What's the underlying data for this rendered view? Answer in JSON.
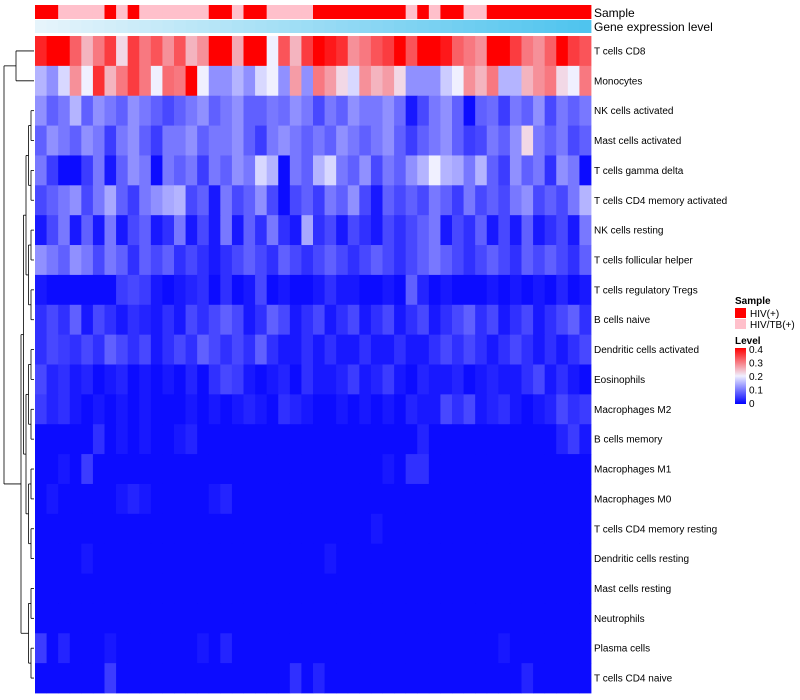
{
  "chart_data": {
    "type": "heatmap",
    "annotation_tracks": [
      {
        "key": "sample",
        "label": "Sample"
      },
      {
        "key": "expression",
        "label": "Gene expression level"
      }
    ],
    "rows": [
      "T cells CD8",
      "Monocytes",
      "NK cells activated",
      "Mast cells activated",
      "T cells gamma delta",
      "T cells CD4 memory activated",
      "NK cells resting",
      "T cells follicular helper",
      "T cells regulatory  Tregs",
      "B cells naive",
      "Dendritic cells activated",
      "Eosinophils",
      "Macrophages M2",
      "B cells memory",
      "Macrophages M1",
      "Macrophages M0",
      "T cells CD4 memory resting",
      "Dendritic cells resting",
      "Mast cells resting",
      "Neutrophils",
      "Plasma cells",
      "T cells CD4 naive"
    ],
    "sample_groups": [
      "HIV(+)",
      "HIV/TB(+)"
    ],
    "column_samples": [
      0,
      0,
      1,
      1,
      1,
      1,
      0,
      1,
      0,
      1,
      1,
      1,
      1,
      1,
      1,
      0,
      0,
      1,
      0,
      0,
      1,
      1,
      1,
      1,
      0,
      0,
      0,
      0,
      0,
      0,
      0,
      0,
      1,
      0,
      1,
      0,
      0,
      1,
      1,
      0,
      0,
      0,
      0,
      0,
      0,
      0,
      0,
      0
    ],
    "sample_colors": {
      "HIV(+)": "#ff0000",
      "HIV/TB(+)": "#ffc0cb"
    },
    "expression_track_colors": [
      "#e6f4fb",
      "#4fc4ee"
    ],
    "values": [
      [
        0.37,
        0.4,
        0.4,
        0.32,
        0.25,
        0.3,
        0.35,
        0.22,
        0.35,
        0.3,
        0.33,
        0.28,
        0.33,
        0.25,
        0.28,
        0.45,
        0.45,
        0.26,
        0.45,
        0.45,
        0.2,
        0.33,
        0.25,
        0.35,
        0.4,
        0.38,
        0.36,
        0.28,
        0.3,
        0.33,
        0.35,
        0.4,
        0.33,
        0.45,
        0.45,
        0.38,
        0.32,
        0.3,
        0.28,
        0.4,
        0.45,
        0.35,
        0.3,
        0.28,
        0.32,
        0.4,
        0.35,
        0.33
      ],
      [
        0.15,
        0.12,
        0.18,
        0.28,
        0.2,
        0.36,
        0.25,
        0.3,
        0.35,
        0.3,
        0.2,
        0.31,
        0.3,
        0.45,
        0.2,
        0.12,
        0.12,
        0.15,
        0.12,
        0.18,
        0.2,
        0.12,
        0.27,
        0.12,
        0.3,
        0.27,
        0.22,
        0.18,
        0.28,
        0.25,
        0.27,
        0.22,
        0.12,
        0.12,
        0.12,
        0.17,
        0.2,
        0.28,
        0.25,
        0.3,
        0.15,
        0.15,
        0.25,
        0.28,
        0.3,
        0.22,
        0.2,
        0.3
      ],
      [
        0.12,
        0.08,
        0.1,
        0.15,
        0.08,
        0.12,
        0.1,
        0.08,
        0.12,
        0.1,
        0.08,
        0.06,
        0.08,
        0.1,
        0.12,
        0.08,
        0.1,
        0.12,
        0.08,
        0.08,
        0.1,
        0.09,
        0.12,
        0.1,
        0.06,
        0.1,
        0.08,
        0.12,
        0.1,
        0.1,
        0.12,
        0.09,
        0.02,
        0.06,
        0.1,
        0.12,
        0.08,
        0.01,
        0.08,
        0.09,
        0.05,
        0.1,
        0.08,
        0.12,
        0.06,
        0.1,
        0.08,
        0.1
      ],
      [
        0.08,
        0.12,
        0.1,
        0.08,
        0.12,
        0.1,
        0.05,
        0.1,
        0.12,
        0.08,
        0.05,
        0.1,
        0.1,
        0.12,
        0.08,
        0.1,
        0.1,
        0.12,
        0.08,
        0.05,
        0.1,
        0.12,
        0.1,
        0.08,
        0.1,
        0.08,
        0.12,
        0.1,
        0.08,
        0.1,
        0.12,
        0.08,
        0.05,
        0.08,
        0.1,
        0.12,
        0.08,
        0.05,
        0.06,
        0.1,
        0.08,
        0.12,
        0.22,
        0.1,
        0.08,
        0.1,
        0.06,
        0.08
      ],
      [
        0.1,
        0.05,
        0.01,
        0.01,
        0.05,
        0.1,
        0.02,
        0.08,
        0.12,
        0.1,
        0.01,
        0.1,
        0.08,
        0.1,
        0.05,
        0.1,
        0.08,
        0.12,
        0.1,
        0.18,
        0.15,
        0.01,
        0.1,
        0.08,
        0.15,
        0.18,
        0.1,
        0.08,
        0.12,
        0.06,
        0.1,
        0.08,
        0.12,
        0.15,
        0.2,
        0.15,
        0.14,
        0.1,
        0.15,
        0.08,
        0.05,
        0.12,
        0.08,
        0.1,
        0.04,
        0.12,
        0.1,
        0.01
      ],
      [
        0.06,
        0.08,
        0.1,
        0.12,
        0.06,
        0.1,
        0.14,
        0.08,
        0.05,
        0.1,
        0.12,
        0.14,
        0.15,
        0.06,
        0.08,
        0.02,
        0.1,
        0.06,
        0.08,
        0.12,
        0.06,
        0.01,
        0.06,
        0.08,
        0.05,
        0.1,
        0.08,
        0.12,
        0.06,
        0.02,
        0.08,
        0.06,
        0.08,
        0.06,
        0.1,
        0.08,
        0.05,
        0.1,
        0.06,
        0.08,
        0.06,
        0.1,
        0.12,
        0.06,
        0.08,
        0.06,
        0.1,
        0.15
      ],
      [
        0.02,
        0.06,
        0.1,
        0.02,
        0.08,
        0.02,
        0.1,
        0.02,
        0.06,
        0.08,
        0.02,
        0.04,
        0.1,
        0.02,
        0.06,
        0.02,
        0.1,
        0.02,
        0.08,
        0.04,
        0.1,
        0.04,
        0.02,
        0.14,
        0.04,
        0.06,
        0.02,
        0.06,
        0.04,
        0.02,
        0.06,
        0.04,
        0.06,
        0.08,
        0.1,
        0.02,
        0.06,
        0.04,
        0.08,
        0.02,
        0.06,
        0.02,
        0.08,
        0.02,
        0.04,
        0.06,
        0.02,
        0.1
      ],
      [
        0.12,
        0.1,
        0.08,
        0.12,
        0.1,
        0.06,
        0.1,
        0.08,
        0.04,
        0.08,
        0.06,
        0.08,
        0.04,
        0.06,
        0.04,
        0.02,
        0.04,
        0.06,
        0.08,
        0.06,
        0.04,
        0.08,
        0.06,
        0.04,
        0.06,
        0.08,
        0.06,
        0.04,
        0.06,
        0.08,
        0.06,
        0.04,
        0.06,
        0.08,
        0.1,
        0.08,
        0.06,
        0.04,
        0.06,
        0.08,
        0.06,
        0.04,
        0.08,
        0.06,
        0.08,
        0.06,
        0.04,
        0.08
      ],
      [
        0.02,
        0.01,
        0.01,
        0.01,
        0.01,
        0.01,
        0.01,
        0.05,
        0.06,
        0.05,
        0.02,
        0.01,
        0.02,
        0.03,
        0.04,
        0.01,
        0.04,
        0.01,
        0.02,
        0.06,
        0.01,
        0.02,
        0.01,
        0.01,
        0.02,
        0.04,
        0.02,
        0.02,
        0.01,
        0.01,
        0.02,
        0.01,
        0.08,
        0.03,
        0.01,
        0.02,
        0.01,
        0.01,
        0.01,
        0.02,
        0.01,
        0.02,
        0.01,
        0.02,
        0.01,
        0.03,
        0.01,
        0.02
      ],
      [
        0.04,
        0.06,
        0.04,
        0.08,
        0.02,
        0.06,
        0.04,
        0.02,
        0.04,
        0.03,
        0.02,
        0.04,
        0.02,
        0.06,
        0.04,
        0.06,
        0.08,
        0.06,
        0.02,
        0.04,
        0.08,
        0.06,
        0.02,
        0.04,
        0.06,
        0.02,
        0.04,
        0.06,
        0.02,
        0.04,
        0.06,
        0.02,
        0.04,
        0.06,
        0.02,
        0.04,
        0.06,
        0.08,
        0.04,
        0.06,
        0.02,
        0.04,
        0.06,
        0.02,
        0.04,
        0.06,
        0.08,
        0.04
      ],
      [
        0.04,
        0.06,
        0.05,
        0.04,
        0.06,
        0.04,
        0.08,
        0.06,
        0.04,
        0.06,
        0.02,
        0.04,
        0.06,
        0.04,
        0.08,
        0.06,
        0.04,
        0.06,
        0.04,
        0.08,
        0.04,
        0.02,
        0.02,
        0.04,
        0.02,
        0.04,
        0.02,
        0.02,
        0.04,
        0.02,
        0.02,
        0.04,
        0.02,
        0.02,
        0.04,
        0.06,
        0.04,
        0.06,
        0.04,
        0.02,
        0.04,
        0.06,
        0.04,
        0.02,
        0.04,
        0.02,
        0.04,
        0.06
      ],
      [
        0.06,
        0.03,
        0.04,
        0.02,
        0.03,
        0.01,
        0.02,
        0.03,
        0.01,
        0.02,
        0.01,
        0.02,
        0.01,
        0.03,
        0.01,
        0.04,
        0.06,
        0.05,
        0.02,
        0.01,
        0.02,
        0.03,
        0.01,
        0.04,
        0.02,
        0.02,
        0.03,
        0.05,
        0.02,
        0.03,
        0.05,
        0.02,
        0.01,
        0.03,
        0.02,
        0.02,
        0.03,
        0.01,
        0.02,
        0.03,
        0.02,
        0.02,
        0.04,
        0.06,
        0.02,
        0.04,
        0.02,
        0.01
      ],
      [
        0.05,
        0.03,
        0.04,
        0.02,
        0.01,
        0.02,
        0.01,
        0.02,
        0.01,
        0.02,
        0.01,
        0.01,
        0.01,
        0.02,
        0.01,
        0.02,
        0.01,
        0.02,
        0.03,
        0.02,
        0.01,
        0.04,
        0.03,
        0.02,
        0.01,
        0.01,
        0.02,
        0.01,
        0.02,
        0.01,
        0.02,
        0.01,
        0.03,
        0.02,
        0.02,
        0.06,
        0.04,
        0.06,
        0.02,
        0.03,
        0.04,
        0.02,
        0.01,
        0.02,
        0.03,
        0.06,
        0.04,
        0.05
      ],
      [
        0.01,
        0.01,
        0.01,
        0.01,
        0.01,
        0.04,
        0.01,
        0.02,
        0.01,
        0.02,
        0.01,
        0.01,
        0.02,
        0.03,
        0.01,
        0.01,
        0.01,
        0.01,
        0.01,
        0.01,
        0.01,
        0.01,
        0.01,
        0.01,
        0.01,
        0.01,
        0.01,
        0.01,
        0.01,
        0.01,
        0.01,
        0.01,
        0.01,
        0.03,
        0.01,
        0.01,
        0.01,
        0.01,
        0.01,
        0.01,
        0.01,
        0.01,
        0.01,
        0.01,
        0.01,
        0.03,
        0.05,
        0.02
      ],
      [
        0.01,
        0.01,
        0.02,
        0.01,
        0.05,
        0.01,
        0.01,
        0.01,
        0.01,
        0.01,
        0.01,
        0.01,
        0.01,
        0.01,
        0.01,
        0.01,
        0.01,
        0.01,
        0.01,
        0.01,
        0.01,
        0.01,
        0.01,
        0.01,
        0.01,
        0.01,
        0.01,
        0.01,
        0.01,
        0.01,
        0.02,
        0.01,
        0.04,
        0.04,
        0.01,
        0.01,
        0.01,
        0.01,
        0.01,
        0.01,
        0.01,
        0.01,
        0.01,
        0.01,
        0.01,
        0.01,
        0.01,
        0.01
      ],
      [
        0.01,
        0.02,
        0.01,
        0.01,
        0.01,
        0.01,
        0.01,
        0.02,
        0.03,
        0.02,
        0.01,
        0.01,
        0.01,
        0.01,
        0.01,
        0.02,
        0.03,
        0.01,
        0.01,
        0.01,
        0.01,
        0.01,
        0.01,
        0.01,
        0.01,
        0.01,
        0.01,
        0.01,
        0.01,
        0.01,
        0.01,
        0.01,
        0.01,
        0.01,
        0.01,
        0.01,
        0.01,
        0.01,
        0.01,
        0.01,
        0.01,
        0.01,
        0.01,
        0.01,
        0.01,
        0.01,
        0.01,
        0.01
      ],
      [
        0.01,
        0.01,
        0.01,
        0.01,
        0.01,
        0.01,
        0.01,
        0.01,
        0.01,
        0.01,
        0.01,
        0.01,
        0.01,
        0.01,
        0.01,
        0.01,
        0.01,
        0.01,
        0.01,
        0.01,
        0.01,
        0.01,
        0.01,
        0.01,
        0.01,
        0.01,
        0.01,
        0.01,
        0.01,
        0.02,
        0.01,
        0.01,
        0.01,
        0.01,
        0.01,
        0.01,
        0.01,
        0.01,
        0.01,
        0.01,
        0.01,
        0.01,
        0.01,
        0.01,
        0.01,
        0.01,
        0.01,
        0.01
      ],
      [
        0.01,
        0.01,
        0.01,
        0.01,
        0.02,
        0.01,
        0.01,
        0.01,
        0.01,
        0.01,
        0.01,
        0.01,
        0.01,
        0.01,
        0.01,
        0.01,
        0.01,
        0.01,
        0.01,
        0.01,
        0.01,
        0.01,
        0.01,
        0.01,
        0.01,
        0.02,
        0.01,
        0.01,
        0.01,
        0.01,
        0.01,
        0.01,
        0.01,
        0.01,
        0.01,
        0.01,
        0.01,
        0.01,
        0.01,
        0.01,
        0.01,
        0.01,
        0.01,
        0.01,
        0.01,
        0.01,
        0.01,
        0.01
      ],
      [
        0.01,
        0.01,
        0.01,
        0.01,
        0.01,
        0.01,
        0.01,
        0.01,
        0.01,
        0.01,
        0.01,
        0.01,
        0.01,
        0.01,
        0.01,
        0.01,
        0.01,
        0.01,
        0.01,
        0.01,
        0.01,
        0.01,
        0.01,
        0.01,
        0.01,
        0.01,
        0.01,
        0.01,
        0.01,
        0.01,
        0.01,
        0.01,
        0.01,
        0.01,
        0.01,
        0.01,
        0.01,
        0.01,
        0.01,
        0.01,
        0.01,
        0.01,
        0.01,
        0.01,
        0.01,
        0.01,
        0.01,
        0.01
      ],
      [
        0.01,
        0.01,
        0.01,
        0.01,
        0.01,
        0.01,
        0.01,
        0.01,
        0.01,
        0.01,
        0.01,
        0.01,
        0.01,
        0.01,
        0.01,
        0.01,
        0.01,
        0.01,
        0.01,
        0.01,
        0.01,
        0.01,
        0.01,
        0.01,
        0.01,
        0.01,
        0.01,
        0.01,
        0.01,
        0.01,
        0.01,
        0.01,
        0.01,
        0.01,
        0.01,
        0.01,
        0.01,
        0.01,
        0.01,
        0.01,
        0.01,
        0.01,
        0.01,
        0.01,
        0.01,
        0.01,
        0.01,
        0.01
      ],
      [
        0.05,
        0.01,
        0.03,
        0.01,
        0.01,
        0.01,
        0.02,
        0.01,
        0.01,
        0.01,
        0.01,
        0.01,
        0.01,
        0.01,
        0.02,
        0.01,
        0.03,
        0.01,
        0.01,
        0.01,
        0.01,
        0.01,
        0.01,
        0.01,
        0.01,
        0.01,
        0.01,
        0.01,
        0.01,
        0.01,
        0.01,
        0.01,
        0.01,
        0.01,
        0.01,
        0.01,
        0.01,
        0.01,
        0.01,
        0.01,
        0.02,
        0.01,
        0.01,
        0.01,
        0.01,
        0.01,
        0.01,
        0.01
      ],
      [
        0.01,
        0.01,
        0.01,
        0.01,
        0.01,
        0.01,
        0.05,
        0.01,
        0.01,
        0.01,
        0.01,
        0.01,
        0.01,
        0.01,
        0.01,
        0.01,
        0.01,
        0.01,
        0.01,
        0.01,
        0.01,
        0.01,
        0.04,
        0.01,
        0.03,
        0.01,
        0.01,
        0.01,
        0.01,
        0.01,
        0.01,
        0.01,
        0.01,
        0.01,
        0.01,
        0.01,
        0.01,
        0.01,
        0.01,
        0.01,
        0.01,
        0.01,
        0.03,
        0.01,
        0.01,
        0.01,
        0.01,
        0.01
      ]
    ],
    "color_scale": {
      "breaks": [
        0,
        0.2,
        0.4
      ],
      "colors": [
        "#0000ff",
        "#f0f0ff",
        "#ff0000"
      ]
    },
    "legend": {
      "sample_title": "Sample",
      "level_title": "Level",
      "level_ticks": [
        "0.4",
        "0.3",
        "0.2",
        "0.1",
        "0"
      ],
      "placement": "right"
    },
    "dendrogram": "rows"
  }
}
